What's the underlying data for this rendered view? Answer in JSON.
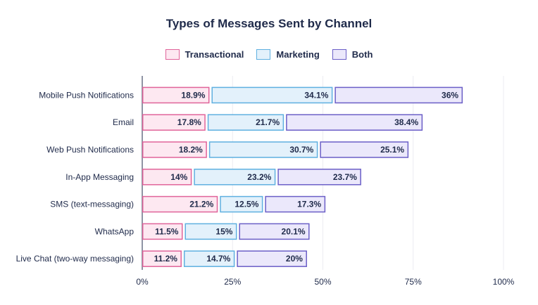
{
  "chart_data": {
    "type": "bar",
    "orientation": "horizontal",
    "stacked": true,
    "title": "Types of Messages Sent by Channel",
    "categories": [
      "Mobile Push Notifications",
      "Email",
      "Web Push Notifications",
      "In-App Messaging",
      "SMS (text-messaging)",
      "WhatsApp",
      "Live Chat (two-way messaging)"
    ],
    "series": [
      {
        "name": "Transactional",
        "values": [
          18.9,
          17.8,
          18.2,
          14,
          21.2,
          11.5,
          11.2
        ],
        "labels": [
          "18.9%",
          "17.8%",
          "18.2%",
          "14%",
          "21.2%",
          "11.5%",
          "11.2%"
        ],
        "fill": "#fde8f1",
        "stroke": "#e0649a"
      },
      {
        "name": "Marketing",
        "values": [
          34.1,
          21.7,
          30.7,
          23.2,
          12.5,
          15,
          14.7
        ],
        "labels": [
          "34.1%",
          "21.7%",
          "30.7%",
          "23.2%",
          "12.5%",
          "15%",
          "14.7%"
        ],
        "fill": "#e3f1fb",
        "stroke": "#5fb0e0"
      },
      {
        "name": "Both",
        "values": [
          36,
          38.4,
          25.1,
          23.7,
          17.3,
          20.1,
          20
        ],
        "labels": [
          "36%",
          "38.4%",
          "25.1%",
          "23.7%",
          "17.3%",
          "20.1%",
          "20%"
        ],
        "fill": "#ebe8fb",
        "stroke": "#6b5fc7"
      }
    ],
    "xlim": [
      0,
      100
    ],
    "xticks": [
      "0%",
      "25%",
      "50%",
      "75%",
      "100%"
    ],
    "grid": true,
    "legend_position": "top-center"
  }
}
